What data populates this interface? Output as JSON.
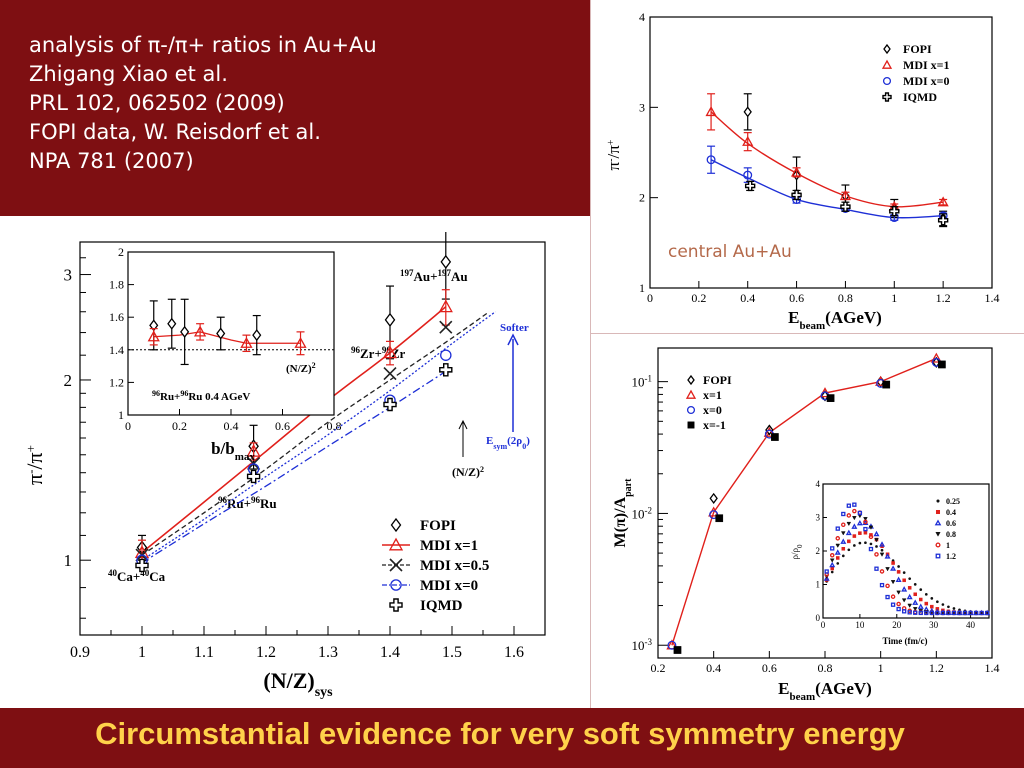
{
  "slide": {
    "reference_lines": [
      "analysis of π-/π+ ratios in Au+Au",
      "Zhigang Xiao et al.",
      "PRL 102, 062502 (2009)",
      "FOPI data, W. Reisdorf et al.",
      "NPA 781 (2007)"
    ],
    "footer_title": "Circumstantial evidence for very soft symmetry energy",
    "colors": {
      "header_bg": "#7e0f12",
      "title_text": "#ffd24a",
      "mdi_x1": "#e0201b",
      "mdi_x0": "#1e2fd6"
    }
  },
  "chart_data": [
    {
      "id": "main",
      "type": "line",
      "ylabel_base": "π",
      "ylabel_sup1": "-",
      "ylabel_sep": "/π",
      "ylabel_sup2": "+",
      "xlabel_base": "(N/Z)",
      "xlabel_sub": "sys",
      "xlim": [
        0.9,
        1.65
      ],
      "ylim": [
        0.75,
        3.4
      ],
      "yscale": "log",
      "xticks": [
        0.9,
        1,
        1.1,
        1.2,
        1.3,
        1.4,
        1.5,
        1.6
      ],
      "yticks": [
        1,
        2,
        3
      ],
      "legend_position": "bottom-right",
      "system_labels": [
        {
          "a1": "40",
          "e1": "Ca+",
          "a2": "40",
          "e2": "Ca"
        },
        {
          "a1": "96",
          "e1": "Ru+",
          "a2": "96",
          "e2": "Ru"
        },
        {
          "a1": "96",
          "e1": "Zr+",
          "a2": "96",
          "e2": "Zr"
        },
        {
          "a1": "197",
          "e1": "Au+",
          "a2": "197",
          "e2": "Au"
        }
      ],
      "annotations": {
        "softer": "Softer",
        "esym_base": "E",
        "esym_sub": "sym",
        "esym_arg_open": "(2ρ",
        "esym_arg_sub": "0",
        "esym_arg_close": ")",
        "nz_base": "(N/Z)",
        "nz_sup": "2"
      },
      "series": [
        {
          "name": "FOPI",
          "marker": "diamond",
          "x": [
            1.0,
            1.18,
            1.4,
            1.49
          ],
          "y": [
            1.05,
            1.55,
            2.52,
            3.15
          ],
          "yerr": [
            0.05,
            0.13,
            0.35,
            0.42
          ]
        },
        {
          "name": "MDI x=1",
          "color": "#e0201b",
          "style": "solid",
          "marker": "triangle",
          "x": [
            1.0,
            1.18,
            1.4,
            1.49
          ],
          "y": [
            1.03,
            1.52,
            2.22,
            2.65
          ],
          "yerr": [
            0.05,
            0.05,
            0.1,
            0.18
          ]
        },
        {
          "name": "MDI x=0.5",
          "color": "#222222",
          "style": "dash",
          "marker": "x",
          "x": [
            1.0,
            1.18,
            1.4,
            1.49
          ],
          "y": [
            1.02,
            1.45,
            2.05,
            2.45
          ]
        },
        {
          "name": "MDI x=0",
          "color": "#1e2fd6",
          "style": "dashdot",
          "marker": "circle",
          "x": [
            1.0,
            1.18,
            1.4,
            1.49
          ],
          "y": [
            1.0,
            1.42,
            1.85,
            2.2
          ]
        },
        {
          "name": "IQMD",
          "marker": "cross",
          "x": [
            1.0,
            1.18,
            1.4,
            1.49
          ],
          "y": [
            0.98,
            1.38,
            1.82,
            2.08
          ]
        }
      ],
      "line_x1": [
        1.0,
        1.1,
        1.2,
        1.3,
        1.4,
        1.49
      ],
      "line_y1": [
        1.03,
        1.25,
        1.52,
        1.85,
        2.22,
        2.65
      ],
      "line_x05": [
        1.0,
        1.1,
        1.2,
        1.3,
        1.4,
        1.5,
        1.56
      ],
      "line_y05": [
        1.02,
        1.2,
        1.42,
        1.7,
        2.0,
        2.35,
        2.6
      ],
      "line_x0a": [
        1.0,
        1.1,
        1.2,
        1.3,
        1.4,
        1.5,
        1.57
      ],
      "line_y0a": [
        1.0,
        1.17,
        1.38,
        1.62,
        1.92,
        2.3,
        2.6
      ],
      "line_x0b": [
        1.0,
        1.1,
        1.2,
        1.3,
        1.4,
        1.5
      ],
      "line_y0b": [
        0.99,
        1.15,
        1.33,
        1.55,
        1.8,
        2.1
      ]
    },
    {
      "id": "inset_b",
      "type": "scatter",
      "xlabel_base": "b/b",
      "xlabel_sub": "max",
      "xlim": [
        0,
        0.8
      ],
      "ylim": [
        1,
        2
      ],
      "xticks": [
        0,
        0.2,
        0.4,
        0.6,
        0.8
      ],
      "yticks": [
        1,
        1.2,
        1.4,
        1.6,
        1.8,
        2
      ],
      "reference_label": "(N/Z)",
      "reference_sup": "2",
      "reference_value": 1.4,
      "system_label": {
        "a1": "96",
        "e1": "Ru+",
        "a2": "96",
        "e2": "Ru 0.4 AGeV"
      },
      "series": [
        {
          "name": "FOPI",
          "marker": "diamond",
          "x": [
            0.1,
            0.17,
            0.22,
            0.36,
            0.5
          ],
          "y": [
            1.55,
            1.56,
            1.51,
            1.5,
            1.49
          ],
          "yerr": [
            0.15,
            0.15,
            0.2,
            0.1,
            0.12
          ]
        },
        {
          "name": "MDI x=1",
          "color": "#e0201b",
          "marker": "triangle",
          "x": [
            0.1,
            0.28,
            0.46,
            0.67
          ],
          "y": [
            1.48,
            1.51,
            1.44,
            1.44
          ],
          "yerr": [
            0.05,
            0.05,
            0.05,
            0.07
          ]
        }
      ]
    },
    {
      "id": "top_right",
      "type": "line",
      "ylabel_base": "π",
      "ylabel_sup1": "-",
      "ylabel_sep": "/π",
      "ylabel_sup2": "+",
      "xlabel_base": "E",
      "xlabel_sub": "beam",
      "xlabel_rest": "(AGeV)",
      "xlim": [
        0,
        1.4
      ],
      "ylim": [
        1,
        4
      ],
      "xticks": [
        0,
        0.2,
        0.4,
        0.6,
        0.8,
        1,
        1.2,
        1.4
      ],
      "yticks": [
        1,
        2,
        3,
        4
      ],
      "annotation": "central Au+Au",
      "legend_position": "top-right",
      "series": [
        {
          "name": "FOPI",
          "marker": "diamond",
          "x": [
            0.4,
            0.6,
            0.8,
            1.0,
            1.2
          ],
          "y": [
            2.95,
            2.25,
            2.02,
            1.88,
            1.77
          ],
          "yerr": [
            0.2,
            0.2,
            0.12,
            0.1,
            0.08
          ]
        },
        {
          "name": "MDI x=1",
          "color": "#e0201b",
          "marker": "triangle",
          "x": [
            0.25,
            0.4,
            0.6,
            0.8,
            1.0,
            1.2
          ],
          "y": [
            2.95,
            2.62,
            2.28,
            2.02,
            1.9,
            1.95
          ],
          "yerr": [
            0.2,
            0.1,
            0.05,
            0.04,
            0.03,
            0.03
          ]
        },
        {
          "name": "MDI x=0",
          "color": "#1e2fd6",
          "marker": "circle",
          "x": [
            0.25,
            0.4,
            0.6,
            0.8,
            1.0,
            1.2
          ],
          "y": [
            2.42,
            2.25,
            1.98,
            1.88,
            1.78,
            1.8
          ],
          "yerr": [
            0.15,
            0.08,
            0.04,
            0.03,
            0.03,
            0.03
          ]
        },
        {
          "name": "IQMD",
          "marker": "cross",
          "x": [
            0.41,
            0.6,
            0.8,
            1.0,
            1.2
          ],
          "y": [
            2.13,
            2.03,
            1.9,
            1.85,
            1.75
          ],
          "yerr": [
            0.05,
            0.05,
            0.05,
            0.05,
            0.07
          ]
        }
      ],
      "fit_x": [
        0.25,
        0.4,
        0.6,
        0.8,
        1.0,
        1.2
      ],
      "fit_x1": [
        2.95,
        2.6,
        2.27,
        2.02,
        1.9,
        1.95
      ],
      "fit_x0": [
        2.42,
        2.22,
        1.98,
        1.87,
        1.78,
        1.8
      ]
    },
    {
      "id": "bottom_right",
      "type": "line",
      "ylabel_base": "M(π)/A",
      "ylabel_sub": "part",
      "xlabel_base": "E",
      "xlabel_sub": "beam",
      "xlabel_rest": "(AGeV)",
      "xlim": [
        0.2,
        1.4
      ],
      "ylim": [
        0.0008,
        0.18
      ],
      "yscale": "log",
      "xticks": [
        0.2,
        0.4,
        0.6,
        0.8,
        1,
        1.2,
        1.4
      ],
      "yticks_exp": [
        -3,
        -2,
        -1
      ],
      "tick_base": "10",
      "legend_position": "top-left",
      "series": [
        {
          "name": "FOPI",
          "marker": "diamond",
          "x": [
            0.4,
            0.6,
            0.8,
            1.0,
            1.2
          ],
          "y": [
            0.013,
            0.043,
            0.078,
            0.1,
            0.14
          ]
        },
        {
          "name": "x=1",
          "color": "#e0201b",
          "marker": "triangle",
          "x": [
            0.25,
            0.4,
            0.6,
            0.8,
            1.0,
            1.2
          ],
          "y": [
            0.001,
            0.0102,
            0.041,
            0.082,
            0.1,
            0.15
          ]
        },
        {
          "name": "x=0",
          "color": "#1e2fd6",
          "marker": "circle",
          "x": [
            0.25,
            0.4,
            0.6,
            0.8,
            1.0,
            1.2
          ],
          "y": [
            0.001,
            0.0098,
            0.04,
            0.078,
            0.097,
            0.14
          ]
        },
        {
          "name": "x=-1",
          "marker": "square",
          "x": [
            0.27,
            0.42,
            0.62,
            0.82,
            1.02,
            1.22
          ],
          "y": [
            0.00092,
            0.0092,
            0.038,
            0.075,
            0.095,
            0.135
          ]
        }
      ],
      "line_x": [
        0.25,
        0.4,
        0.6,
        0.8,
        1.0,
        1.2
      ],
      "line_y": [
        0.001,
        0.0102,
        0.041,
        0.082,
        0.1,
        0.15
      ]
    },
    {
      "id": "inset_density",
      "type": "scatter",
      "ylabel_base": "ρ/ρ",
      "ylabel_sub": "0",
      "xlabel": "Time (fm/c)",
      "xlim": [
        0,
        45
      ],
      "ylim": [
        0,
        4
      ],
      "xticks": [
        0,
        10,
        20,
        30,
        40
      ],
      "yticks": [
        0,
        1,
        2,
        3,
        4
      ],
      "legend_position": "top-right",
      "series": [
        {
          "name": "0.25",
          "color": "#111111",
          "marker": "dot",
          "peak": 2.25,
          "t_peak": 11,
          "width": 14
        },
        {
          "name": "0.4",
          "color": "#e0201b",
          "marker": "square",
          "peak": 2.55,
          "t_peak": 11,
          "width": 11
        },
        {
          "name": "0.6",
          "color": "#1e2fd6",
          "marker": "triangle",
          "peak": 2.85,
          "t_peak": 11,
          "width": 9
        },
        {
          "name": "0.8",
          "color": "#111111",
          "marker": "triangle-down",
          "peak": 3.05,
          "t_peak": 10,
          "width": 8
        },
        {
          "name": "1",
          "color": "#e0201b",
          "marker": "circle",
          "peak": 3.2,
          "t_peak": 9,
          "width": 7
        },
        {
          "name": "1.2",
          "color": "#1e2fd6",
          "marker": "square-open",
          "peak": 3.4,
          "t_peak": 8,
          "width": 6.5
        }
      ]
    }
  ]
}
